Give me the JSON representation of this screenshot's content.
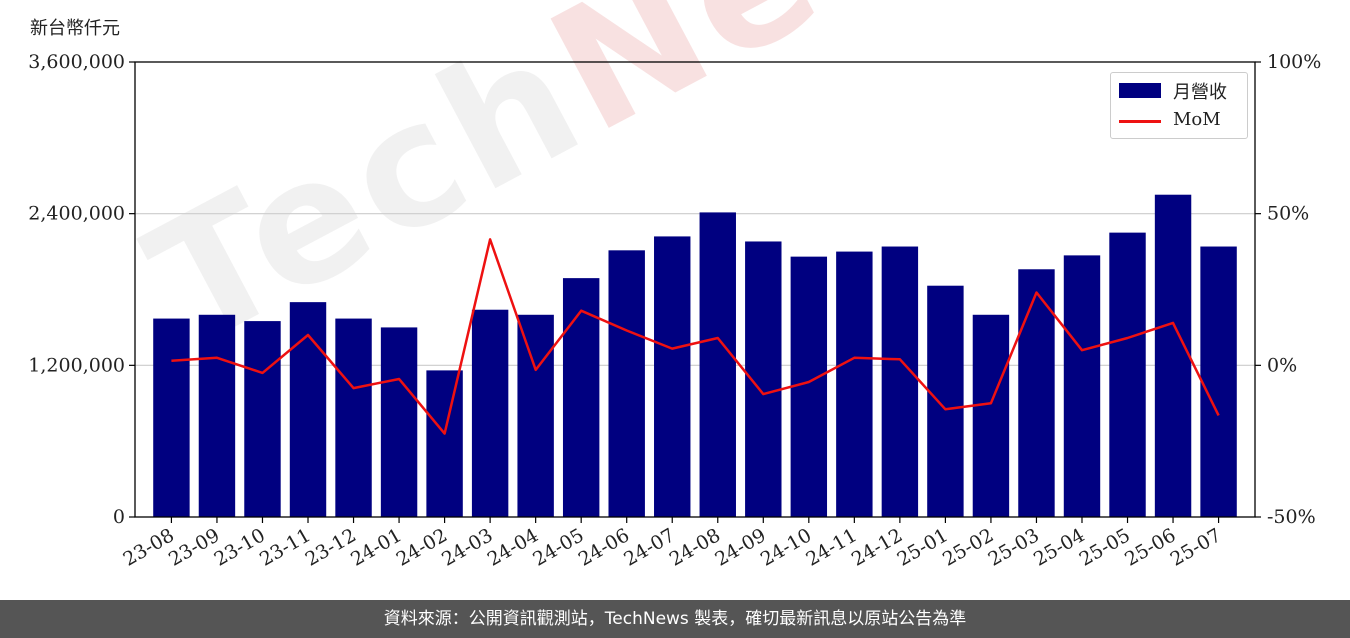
{
  "unit_label": "新台幣仟元",
  "footer": "資料來源：公開資訊觀測站，TechNews 製表，確切最新訊息以原站公告為準",
  "watermark": {
    "part1": "Tech",
    "part2": "News"
  },
  "colors": {
    "bar": "#000080",
    "line": "#ee1111",
    "grid": "#cccccc"
  },
  "chart_data": {
    "type": "bar",
    "categories": [
      "23-08",
      "23-09",
      "23-10",
      "23-11",
      "23-12",
      "24-01",
      "24-02",
      "24-03",
      "24-04",
      "24-05",
      "24-06",
      "24-07",
      "24-08",
      "24-09",
      "24-10",
      "24-11",
      "24-12",
      "25-01",
      "25-02",
      "25-03",
      "25-04",
      "25-05",
      "25-06",
      "25-07"
    ],
    "series": [
      {
        "name": "月營收",
        "type": "bar",
        "axis": "left",
        "values": [
          1570000,
          1600000,
          1550000,
          1700000,
          1570000,
          1500000,
          1160000,
          1640000,
          1600000,
          1890000,
          2110000,
          2220000,
          2410000,
          2180000,
          2060000,
          2100000,
          2140000,
          1830000,
          1600000,
          1960000,
          2070000,
          2250000,
          2550000,
          2140000
        ]
      },
      {
        "name": "MoM",
        "type": "line",
        "axis": "right",
        "values": [
          1.5,
          2.5,
          -2.5,
          10,
          -7.5,
          -4.5,
          -22.5,
          41.5,
          -1.5,
          18,
          11.5,
          5.5,
          9,
          -9.5,
          -5.5,
          2.5,
          2,
          -14.5,
          -12.5,
          24,
          5,
          9,
          14,
          -16.5
        ]
      }
    ],
    "y_left": {
      "ylim": [
        0,
        3600000
      ],
      "ticks": [
        "0",
        "1,200,000",
        "2,400,000",
        "3,600,000"
      ],
      "tick_values": [
        0,
        1200000,
        2400000,
        3600000
      ]
    },
    "y_right": {
      "ylim": [
        -50,
        100
      ],
      "ticks": [
        "-50%",
        "0%",
        "50%",
        "100%"
      ],
      "tick_values": [
        -50,
        0,
        50,
        100
      ]
    },
    "grid": true,
    "legend": {
      "placement": "top-right",
      "entries": [
        "月營收",
        "MoM"
      ]
    }
  }
}
